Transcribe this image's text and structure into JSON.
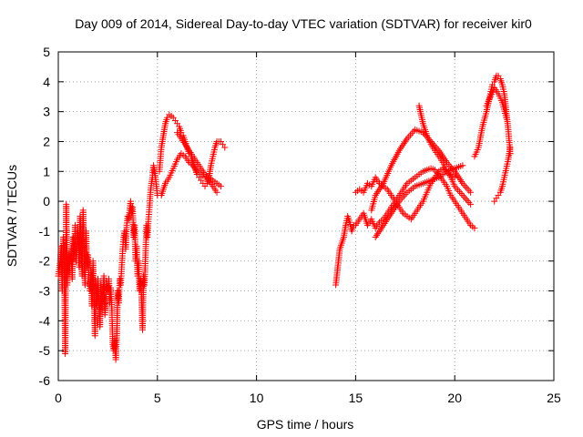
{
  "chart_data": {
    "type": "scatter",
    "title": "Day 009 of 2014, Sidereal Day-to-day VTEC variation (SDTVAR) for receiver kir0",
    "xlabel": "GPS time / hours",
    "ylabel": "SDTVAR / TECUs",
    "xlim": [
      0,
      25
    ],
    "ylim": [
      -6,
      5
    ],
    "xticks": [
      0,
      5,
      10,
      15,
      20,
      25
    ],
    "yticks": [
      -6,
      -5,
      -4,
      -3,
      -2,
      -1,
      0,
      1,
      2,
      3,
      4,
      5
    ],
    "grid": true,
    "marker": "+",
    "color": "#ff0000",
    "series": [
      {
        "x": [
          0.0,
          0.1,
          0.15,
          0.2,
          0.25,
          0.3,
          0.35,
          0.4,
          0.45,
          0.5,
          0.55,
          0.6,
          0.65,
          0.7,
          0.75,
          0.8,
          0.85,
          0.9,
          0.95,
          1.0,
          1.05,
          1.1,
          1.15,
          1.2,
          1.25,
          1.3,
          1.35,
          1.4,
          1.45,
          1.5,
          1.55,
          1.6,
          1.65,
          1.7,
          1.75,
          1.8,
          1.85,
          1.9,
          1.95,
          2.0,
          2.05,
          2.1,
          2.15,
          2.2,
          2.25,
          2.3,
          2.35,
          2.4,
          2.45,
          2.5,
          2.55,
          2.6,
          2.65,
          2.7,
          2.75,
          2.8,
          2.85,
          2.9,
          2.95,
          3.0,
          3.05,
          3.1,
          3.15,
          3.2,
          3.25,
          3.3,
          3.35,
          3.4,
          3.45,
          3.5,
          3.55,
          3.6,
          3.65,
          3.7,
          3.75,
          3.8,
          3.85,
          3.9,
          3.95,
          4.0,
          4.05,
          4.1,
          4.15,
          4.2,
          4.25,
          4.3,
          4.35,
          4.4,
          4.45,
          4.5,
          4.55,
          4.6,
          4.65,
          4.7,
          4.75,
          4.8,
          4.85,
          4.9,
          4.95,
          5.0
        ],
        "y": [
          -2.5,
          -2.0,
          -1.5,
          -3.0,
          -1.2,
          -2.2,
          -5.1,
          -0.1,
          -2.8,
          -1.8,
          -2.4,
          -2.0,
          -1.6,
          -2.6,
          -1.2,
          -1.8,
          -0.8,
          -2.0,
          -1.5,
          -1.0,
          -2.2,
          -0.5,
          -1.2,
          -2.5,
          -0.3,
          -1.5,
          -2.8,
          -1.0,
          -2.2,
          -1.8,
          -2.6,
          -3.0,
          -2.4,
          -3.5,
          -2.0,
          -3.2,
          -4.5,
          -2.8,
          -3.5,
          -2.6,
          -3.4,
          -4.2,
          -2.8,
          -3.6,
          -3.0,
          -2.5,
          -3.8,
          -3.2,
          -2.8,
          -3.0,
          -2.6,
          -3.4,
          -2.9,
          -3.6,
          -4.8,
          -5.0,
          -4.6,
          -5.3,
          -4.5,
          -3.0,
          -3.4,
          -2.6,
          -2.8,
          -2.2,
          -1.6,
          -1.2,
          -1.0,
          -1.6,
          -0.8,
          -0.5,
          -0.6,
          -0.3,
          0.0,
          -0.4,
          -0.2,
          -1.2,
          -0.8,
          -2.0,
          -1.5,
          -2.5,
          -2.0,
          -3.0,
          -2.6,
          -3.2,
          -4.3,
          -2.5,
          -2.8,
          -1.8,
          -0.8,
          -1.2,
          -0.6,
          -0.2,
          0.3,
          0.6,
          0.8,
          1.2,
          1.0,
          0.8,
          0.5,
          0.2
        ]
      },
      {
        "x": [
          5.1,
          5.2,
          5.3,
          5.4,
          5.5,
          5.6,
          5.7,
          5.8,
          5.9,
          6.0,
          6.1,
          6.2,
          6.3,
          6.4,
          6.5,
          6.6,
          6.7,
          6.8,
          6.9,
          7.0,
          7.1,
          7.2,
          7.3,
          7.4,
          7.5,
          7.6,
          7.7,
          7.8,
          7.9,
          8.0,
          8.1,
          8.2,
          8.3,
          8.4
        ],
        "y": [
          1.0,
          1.8,
          2.2,
          2.6,
          2.8,
          2.9,
          2.85,
          2.8,
          2.7,
          2.6,
          2.5,
          2.3,
          2.2,
          2.0,
          1.8,
          1.6,
          1.5,
          1.3,
          1.1,
          0.9,
          0.8,
          0.7,
          0.6,
          0.5,
          0.6,
          0.8,
          1.2,
          1.5,
          1.8,
          2.0,
          2.0,
          2.0,
          1.9,
          1.8
        ]
      },
      {
        "x": [
          5.2,
          5.4,
          5.6,
          5.8,
          6.0,
          6.2,
          6.4,
          6.6,
          6.8,
          7.0,
          7.2,
          7.4,
          7.6,
          7.8,
          8.0,
          8.2
        ],
        "y": [
          0.2,
          0.6,
          0.8,
          1.1,
          1.4,
          1.6,
          1.5,
          1.3,
          1.2,
          1.0,
          0.9,
          0.8,
          0.8,
          0.7,
          0.6,
          0.5
        ]
      },
      {
        "x": [
          6.0,
          6.2,
          6.4,
          6.6,
          6.8,
          7.0,
          7.2,
          7.4,
          7.6,
          7.8,
          8.0
        ],
        "y": [
          2.3,
          2.1,
          1.9,
          1.7,
          1.5,
          1.3,
          1.1,
          0.9,
          0.7,
          0.5,
          0.3
        ]
      },
      {
        "x": [
          14.0,
          14.1,
          14.2,
          14.3,
          14.4,
          14.5,
          14.6,
          14.7,
          14.8,
          14.9,
          15.0,
          15.2,
          15.4,
          15.6,
          15.8,
          16.0,
          16.2,
          16.4,
          16.6,
          16.8,
          17.0,
          17.2,
          17.4,
          17.6,
          17.8,
          18.0,
          18.2,
          18.4,
          18.6,
          18.8,
          19.0,
          19.2,
          19.4,
          19.6,
          19.8,
          20.0,
          20.2,
          20.4,
          20.6,
          20.8,
          21.0
        ],
        "y": [
          -2.8,
          -2.2,
          -1.6,
          -1.4,
          -1.2,
          -0.8,
          -0.5,
          -0.7,
          -1.0,
          -0.8,
          -0.8,
          -0.6,
          -0.4,
          -0.8,
          -0.6,
          -0.9,
          -0.7,
          -0.6,
          -0.4,
          -0.2,
          0.0,
          0.2,
          0.4,
          0.6,
          0.7,
          0.8,
          0.9,
          1.0,
          1.05,
          1.1,
          1.05,
          0.9,
          0.7,
          0.5,
          0.2,
          0.0,
          -0.2,
          -0.4,
          -0.6,
          -0.8,
          -0.9
        ]
      },
      {
        "x": [
          15.0,
          15.2,
          15.4,
          15.6,
          15.8,
          16.0,
          16.2,
          16.4,
          16.6,
          16.8,
          17.0,
          17.2,
          17.4,
          17.6,
          17.8,
          18.0,
          18.2,
          18.4,
          18.6,
          18.8,
          19.0,
          19.2,
          19.4,
          19.6,
          19.8,
          20.0
        ],
        "y": [
          0.3,
          0.4,
          0.3,
          0.6,
          0.5,
          0.8,
          0.6,
          0.5,
          0.4,
          0.2,
          0.0,
          -0.2,
          -0.4,
          -0.5,
          -0.6,
          -0.4,
          -0.2,
          0.0,
          0.3,
          0.6,
          0.8,
          1.0,
          1.1,
          1.0,
          0.9,
          0.8
        ]
      },
      {
        "x": [
          15.8,
          16.0,
          16.4,
          16.8,
          17.2,
          17.6,
          18.0,
          18.4,
          18.8,
          19.2,
          19.6,
          20.0,
          20.4,
          20.8
        ],
        "y": [
          -0.3,
          0.2,
          0.6,
          1.2,
          1.7,
          2.1,
          2.4,
          2.3,
          2.0,
          1.7,
          1.3,
          1.0,
          0.6,
          0.3
        ]
      },
      {
        "x": [
          16.0,
          16.4,
          16.8,
          17.2,
          17.6,
          18.0,
          18.4,
          18.8,
          19.2,
          19.6,
          20.0,
          20.4
        ],
        "y": [
          -1.2,
          -0.8,
          -0.4,
          0.0,
          0.3,
          0.5,
          0.6,
          0.7,
          0.8,
          1.0,
          1.1,
          1.2
        ]
      },
      {
        "x": [
          18.2,
          18.4,
          18.6,
          18.8,
          19.0,
          19.2,
          19.4,
          19.6,
          19.8,
          20.0,
          20.4,
          20.8
        ],
        "y": [
          3.2,
          2.6,
          2.2,
          1.9,
          1.7,
          1.5,
          1.3,
          1.0,
          0.8,
          0.5,
          0.2,
          -0.1
        ]
      },
      {
        "x": [
          21.0,
          21.2,
          21.4,
          21.6,
          21.8,
          21.9,
          22.0,
          22.1,
          22.2,
          22.3,
          22.4,
          22.5,
          22.6,
          22.7,
          22.8
        ],
        "y": [
          1.5,
          1.8,
          2.5,
          3.0,
          3.6,
          3.9,
          4.0,
          4.2,
          4.2,
          4.1,
          3.9,
          3.6,
          3.0,
          2.4,
          1.6
        ]
      },
      {
        "x": [
          22.0,
          22.1,
          22.2,
          22.3,
          22.4,
          22.5,
          22.6,
          22.7,
          22.8
        ],
        "y": [
          0.0,
          0.1,
          0.2,
          0.3,
          0.5,
          0.8,
          1.1,
          1.4,
          1.8
        ]
      },
      {
        "x": [
          21.6,
          21.8,
          22.0,
          22.2,
          22.4,
          22.6
        ],
        "y": [
          3.2,
          3.5,
          3.8,
          3.6,
          3.3,
          2.8
        ]
      }
    ]
  }
}
